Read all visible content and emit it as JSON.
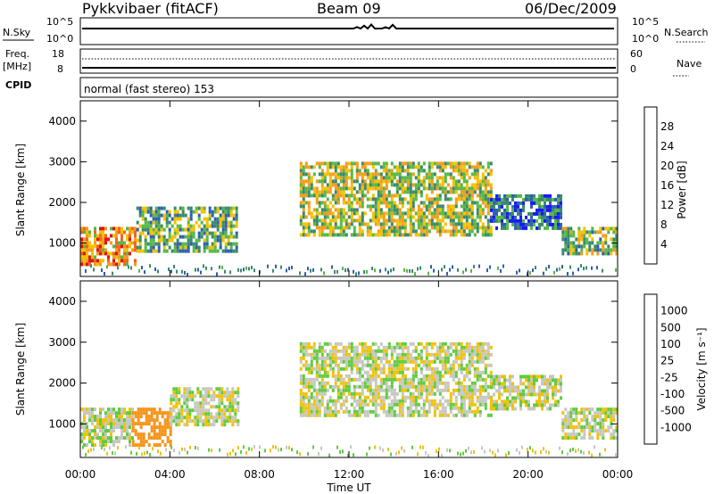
{
  "header": {
    "radar": "Pykkvibaer (fitACF)",
    "beam": "Beam 09",
    "date": "06/Dec/2009"
  },
  "strips": {
    "nsky_label": "N.Sky",
    "nsearch_label": "N.Search",
    "freq_label": "Freq.",
    "freq_unit": "[MHz]",
    "nave_label": "Nave",
    "cpid_label": "CPID",
    "cpid_text": "normal (fast stereo) 153",
    "noise_left_ticks": [
      "10^5",
      "10^0"
    ],
    "noise_right_ticks": [
      "10^5",
      "10^0"
    ],
    "freq_ticks": [
      "18",
      "8"
    ],
    "nave_ticks": [
      "60",
      "0"
    ]
  },
  "chart_data": [
    {
      "type": "heatmap",
      "panel": "power",
      "xlabel": "Time UT",
      "ylabel": "Slant Range [km]",
      "x_ticks": [
        "00:00",
        "04:00",
        "08:00",
        "12:00",
        "16:00",
        "20:00",
        "00:00"
      ],
      "y_ticks": [
        "1000",
        "2000",
        "3000",
        "4000"
      ],
      "xlim_hours": [
        0,
        24
      ],
      "ylim_km": [
        180,
        4500
      ],
      "colorbar": {
        "label": "Power [dB]",
        "ticks": [
          "4",
          "8",
          "12",
          "16",
          "20",
          "24",
          "28"
        ],
        "range": [
          0,
          30
        ],
        "colors": [
          "#1a1aff",
          "#2d5fb3",
          "#3a8a6a",
          "#57b847",
          "#f2c200",
          "#f59b1c",
          "#f2651d",
          "#e01515"
        ]
      },
      "echo_regions": [
        {
          "t": [
            0.0,
            2.5
          ],
          "range_km": [
            500,
            1400
          ],
          "power_db": 22
        },
        {
          "t": [
            2.5,
            7.0
          ],
          "range_km": [
            800,
            1900
          ],
          "power_db": 12
        },
        {
          "t": [
            9.8,
            18.3
          ],
          "range_km": [
            1200,
            3000
          ],
          "power_db": 16
        },
        {
          "t": [
            18.3,
            21.5
          ],
          "range_km": [
            1400,
            2200
          ],
          "power_db": 8
        },
        {
          "t": [
            21.5,
            24.0
          ],
          "range_km": [
            700,
            1400
          ],
          "power_db": 14
        }
      ]
    },
    {
      "type": "heatmap",
      "panel": "velocity",
      "xlabel": "Time UT",
      "ylabel": "Slant Range [km]",
      "x_ticks": [
        "00:00",
        "04:00",
        "08:00",
        "12:00",
        "16:00",
        "20:00",
        "00:00"
      ],
      "y_ticks": [
        "1000",
        "2000",
        "3000",
        "4000"
      ],
      "xlim_hours": [
        0,
        24
      ],
      "ylim_km": [
        180,
        4500
      ],
      "colorbar": {
        "label": "Velocity [m s⁻¹]",
        "ticks": [
          "1000",
          "500",
          "100",
          "25",
          "-25",
          "-100",
          "-500",
          "-1000"
        ],
        "colors": [
          "#1f3fb5",
          "#2f6f9a",
          "#3f9f7a",
          "#5fcc3f",
          "#c7c7c2",
          "#f0c20a",
          "#f5941a",
          "#f0621d",
          "#e01515"
        ]
      },
      "echo_regions": [
        {
          "t": [
            0.0,
            2.3
          ],
          "range_km": [
            500,
            1400
          ],
          "velocity": 0
        },
        {
          "t": [
            2.3,
            4.0
          ],
          "range_km": [
            500,
            1400
          ],
          "velocity": -300
        },
        {
          "t": [
            4.0,
            7.0
          ],
          "range_km": [
            1000,
            1900
          ],
          "velocity": 0
        },
        {
          "t": [
            9.8,
            18.3
          ],
          "range_km": [
            1200,
            3000
          ],
          "velocity": 0
        },
        {
          "t": [
            18.3,
            21.5
          ],
          "range_km": [
            1400,
            2200
          ],
          "velocity": 0
        },
        {
          "t": [
            21.5,
            24.0
          ],
          "range_km": [
            700,
            1400
          ],
          "velocity": 0
        }
      ]
    }
  ]
}
